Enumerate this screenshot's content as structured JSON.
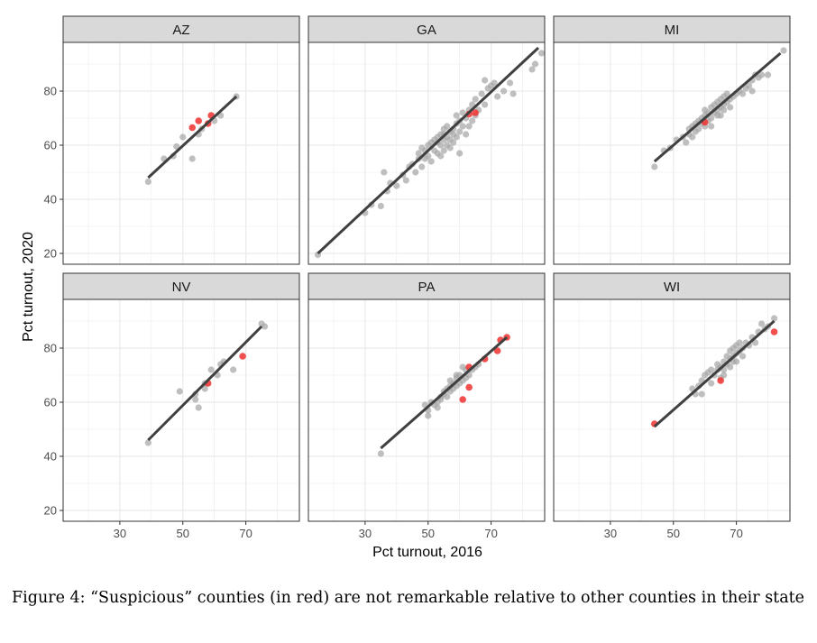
{
  "chart_data": {
    "type": "scatter",
    "xlabel": "Pct turnout, 2016",
    "ylabel": "Pct turnout, 2020",
    "xlim": [
      12,
      87
    ],
    "ylim": [
      16,
      98
    ],
    "x_ticks": [
      30,
      50,
      70
    ],
    "y_ticks": [
      20,
      40,
      60,
      80
    ],
    "grid": true,
    "colors": {
      "normal": "#a6a6a6",
      "suspicious": "#f03030",
      "fit_line": "#404040",
      "strip_fill": "#d9d9d9",
      "panel_border": "#333333",
      "grid": "#ebebeb"
    },
    "panels": [
      {
        "state": "AZ",
        "fit": [
          [
            39,
            48
          ],
          [
            67,
            78
          ]
        ],
        "normal": [
          [
            39,
            46.5
          ],
          [
            44,
            55
          ],
          [
            47,
            56
          ],
          [
            48,
            59.5
          ],
          [
            50,
            63
          ],
          [
            53,
            55
          ],
          [
            55,
            64
          ],
          [
            56,
            66
          ],
          [
            60,
            69
          ],
          [
            62,
            71
          ],
          [
            67,
            78
          ]
        ],
        "suspicious": [
          [
            53,
            66.5
          ],
          [
            55,
            69
          ],
          [
            58,
            68
          ],
          [
            59,
            71
          ]
        ]
      },
      {
        "state": "GA",
        "fit": [
          [
            15,
            20
          ],
          [
            85,
            96
          ]
        ],
        "normal": [
          [
            15,
            19.5
          ],
          [
            30,
            35
          ],
          [
            32,
            38
          ],
          [
            35,
            37.5
          ],
          [
            37,
            43
          ],
          [
            36,
            50
          ],
          [
            38,
            46
          ],
          [
            40,
            45
          ],
          [
            42,
            49
          ],
          [
            43,
            47
          ],
          [
            44,
            52
          ],
          [
            45,
            53
          ],
          [
            46,
            50
          ],
          [
            47,
            57
          ],
          [
            47,
            55
          ],
          [
            48,
            59
          ],
          [
            48,
            52
          ],
          [
            49,
            55
          ],
          [
            49,
            58
          ],
          [
            50,
            60
          ],
          [
            50,
            56
          ],
          [
            51,
            54
          ],
          [
            51,
            61
          ],
          [
            52,
            58
          ],
          [
            52,
            62
          ],
          [
            53,
            57
          ],
          [
            53,
            63
          ],
          [
            54,
            56
          ],
          [
            54,
            60
          ],
          [
            54,
            64
          ],
          [
            55,
            58
          ],
          [
            55,
            62
          ],
          [
            55,
            66
          ],
          [
            56,
            60
          ],
          [
            56,
            63
          ],
          [
            57,
            59
          ],
          [
            57,
            65
          ],
          [
            57,
            62
          ],
          [
            58,
            61
          ],
          [
            58,
            66
          ],
          [
            59,
            63
          ],
          [
            59,
            68
          ],
          [
            59,
            71
          ],
          [
            60,
            57
          ],
          [
            60,
            65
          ],
          [
            60,
            69
          ],
          [
            61,
            67
          ],
          [
            61,
            72
          ],
          [
            62,
            64
          ],
          [
            62,
            70
          ],
          [
            63,
            67
          ],
          [
            63,
            73
          ],
          [
            64,
            69
          ],
          [
            64,
            75
          ],
          [
            65,
            71
          ],
          [
            65,
            77
          ],
          [
            66,
            73
          ],
          [
            67,
            79
          ],
          [
            68,
            75
          ],
          [
            69,
            81
          ],
          [
            68,
            84
          ],
          [
            70,
            82
          ],
          [
            71,
            83
          ],
          [
            72,
            78
          ],
          [
            74,
            80
          ],
          [
            76,
            83
          ],
          [
            77,
            79
          ],
          [
            83,
            88
          ],
          [
            84,
            90
          ],
          [
            86,
            94
          ],
          [
            55,
            64
          ],
          [
            53,
            61
          ],
          [
            56,
            67
          ],
          [
            58,
            64
          ]
        ],
        "suspicious": [
          [
            63,
            71.5
          ],
          [
            65,
            72
          ]
        ]
      },
      {
        "state": "MI",
        "fit": [
          [
            44,
            54
          ],
          [
            84,
            94
          ]
        ],
        "normal": [
          [
            44,
            52
          ],
          [
            47,
            58
          ],
          [
            49,
            59
          ],
          [
            51,
            62
          ],
          [
            53,
            63
          ],
          [
            54,
            61
          ],
          [
            55,
            64
          ],
          [
            55,
            66
          ],
          [
            56,
            63
          ],
          [
            56,
            67
          ],
          [
            57,
            65
          ],
          [
            57,
            68
          ],
          [
            58,
            66
          ],
          [
            58,
            69
          ],
          [
            59,
            68
          ],
          [
            59,
            70
          ],
          [
            60,
            67
          ],
          [
            60,
            71
          ],
          [
            60,
            73
          ],
          [
            61,
            69
          ],
          [
            61,
            72
          ],
          [
            62,
            70
          ],
          [
            62,
            74
          ],
          [
            62,
            67
          ],
          [
            63,
            72
          ],
          [
            63,
            75
          ],
          [
            64,
            71
          ],
          [
            64,
            73
          ],
          [
            64,
            76
          ],
          [
            65,
            74
          ],
          [
            65,
            77
          ],
          [
            66,
            73
          ],
          [
            66,
            75
          ],
          [
            67,
            76
          ],
          [
            67,
            79
          ],
          [
            68,
            74
          ],
          [
            68,
            77
          ],
          [
            69,
            78
          ],
          [
            70,
            79
          ],
          [
            71,
            80
          ],
          [
            72,
            79
          ],
          [
            73,
            81
          ],
          [
            74,
            82
          ],
          [
            75,
            80
          ],
          [
            75,
            84
          ],
          [
            76,
            86
          ],
          [
            77,
            85
          ],
          [
            78,
            86
          ],
          [
            80,
            86
          ],
          [
            85,
            95
          ],
          [
            66,
            78
          ],
          [
            65,
            71
          ]
        ],
        "suspicious": [
          [
            60,
            68.5
          ]
        ]
      },
      {
        "state": "NV",
        "fit": [
          [
            39,
            46
          ],
          [
            75,
            88
          ]
        ],
        "normal": [
          [
            39,
            45
          ],
          [
            49,
            64
          ],
          [
            54,
            61
          ],
          [
            54,
            63
          ],
          [
            55,
            58
          ],
          [
            57,
            65
          ],
          [
            57,
            67
          ],
          [
            59,
            72
          ],
          [
            61,
            70
          ],
          [
            62,
            74
          ],
          [
            63,
            75
          ],
          [
            66,
            72
          ],
          [
            75,
            89
          ],
          [
            76,
            88
          ]
        ],
        "suspicious": [
          [
            58,
            67
          ],
          [
            69,
            77
          ]
        ]
      },
      {
        "state": "PA",
        "fit": [
          [
            35,
            43
          ],
          [
            75,
            84
          ]
        ],
        "normal": [
          [
            35,
            41
          ],
          [
            49,
            59
          ],
          [
            50,
            57
          ],
          [
            50,
            55
          ],
          [
            51,
            60
          ],
          [
            52,
            59
          ],
          [
            53,
            58
          ],
          [
            53,
            60
          ],
          [
            54,
            61
          ],
          [
            54,
            62
          ],
          [
            55,
            64
          ],
          [
            55,
            63
          ],
          [
            56,
            62
          ],
          [
            56,
            65
          ],
          [
            57,
            64
          ],
          [
            57,
            66
          ],
          [
            58,
            65
          ],
          [
            58,
            67
          ],
          [
            59,
            66
          ],
          [
            59,
            69
          ],
          [
            60,
            67
          ],
          [
            60,
            70
          ],
          [
            61,
            68
          ],
          [
            61,
            73
          ],
          [
            62,
            69
          ],
          [
            62,
            72
          ],
          [
            63,
            70
          ],
          [
            64,
            72
          ],
          [
            65,
            73
          ],
          [
            66,
            74
          ],
          [
            59,
            70
          ],
          [
            57,
            68
          ]
        ],
        "suspicious": [
          [
            61,
            61
          ],
          [
            63,
            65.5
          ],
          [
            63,
            73
          ],
          [
            68,
            76
          ],
          [
            72,
            79
          ],
          [
            73,
            83
          ],
          [
            75,
            84
          ]
        ]
      },
      {
        "state": "WI",
        "fit": [
          [
            44,
            51
          ],
          [
            82,
            90
          ]
        ],
        "normal": [
          [
            56,
            65
          ],
          [
            57,
            63
          ],
          [
            58,
            66
          ],
          [
            59,
            63
          ],
          [
            59,
            68
          ],
          [
            60,
            70
          ],
          [
            61,
            71
          ],
          [
            62,
            67
          ],
          [
            62,
            72
          ],
          [
            63,
            70
          ],
          [
            64,
            72
          ],
          [
            64,
            74
          ],
          [
            65,
            69
          ],
          [
            65,
            73
          ],
          [
            66,
            72
          ],
          [
            66,
            75
          ],
          [
            67,
            74
          ],
          [
            67,
            77
          ],
          [
            68,
            73
          ],
          [
            68,
            76
          ],
          [
            68,
            79
          ],
          [
            69,
            75
          ],
          [
            69,
            77
          ],
          [
            69,
            80
          ],
          [
            70,
            78
          ],
          [
            70,
            81
          ],
          [
            71,
            79
          ],
          [
            71,
            82
          ],
          [
            72,
            80
          ],
          [
            73,
            82
          ],
          [
            74,
            81
          ],
          [
            75,
            84
          ],
          [
            76,
            82
          ],
          [
            77,
            86
          ],
          [
            78,
            89
          ],
          [
            79,
            87
          ],
          [
            80,
            88
          ],
          [
            82,
            91
          ],
          [
            66,
            70
          ],
          [
            70,
            75
          ],
          [
            72,
            77
          ]
        ],
        "suspicious": [
          [
            44,
            52
          ],
          [
            65,
            68
          ],
          [
            82,
            86
          ]
        ]
      }
    ]
  },
  "caption": "Figure 4:  “Suspicious” counties (in red) are not remarkable relative to other counties in their state"
}
